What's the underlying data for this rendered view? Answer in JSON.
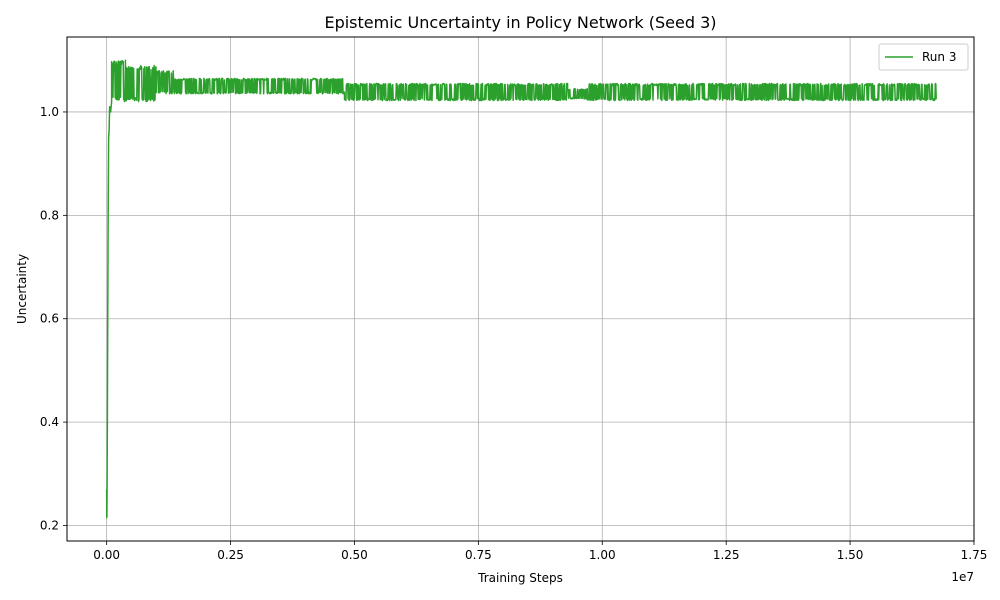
{
  "chart_data": {
    "type": "line",
    "title": "Epistemic Uncertainty in Policy Network (Seed 3)",
    "xlabel": "Training Steps",
    "ylabel": "Uncertainty",
    "x_offset_label": "1e7",
    "xlim": [
      -800000,
      17500000
    ],
    "ylim": [
      0.17,
      1.145
    ],
    "x_ticks": [
      0,
      2500000,
      5000000,
      7500000,
      10000000,
      12500000,
      15000000,
      17500000
    ],
    "x_tick_labels": [
      "0.00",
      "0.25",
      "0.50",
      "0.75",
      "1.00",
      "1.25",
      "1.50",
      "1.75"
    ],
    "y_ticks": [
      0.2,
      0.4,
      0.6,
      0.8,
      1.0
    ],
    "y_tick_labels": [
      "0.2",
      "0.4",
      "0.6",
      "0.8",
      "1.0"
    ],
    "grid": true,
    "legend_position": "top-right",
    "series": [
      {
        "name": "Run 3",
        "color": "#2ca02c",
        "x_max": 16750000,
        "initial": [
          [
            0,
            0.27
          ],
          [
            2000,
            0.215
          ],
          [
            5000,
            0.22
          ],
          [
            10000,
            0.3
          ],
          [
            20000,
            0.55
          ],
          [
            30000,
            0.8
          ],
          [
            40000,
            0.95
          ],
          [
            50000,
            0.965
          ],
          [
            60000,
            1.01
          ],
          [
            80000,
            1.0
          ],
          [
            100000,
            1.02
          ]
        ],
        "bands": [
          {
            "start": 100000,
            "end": 400000,
            "low": 1.02,
            "high": 1.1
          },
          {
            "start": 400000,
            "end": 1000000,
            "low": 1.02,
            "high": 1.09
          },
          {
            "start": 1000000,
            "end": 1350000,
            "low": 1.035,
            "high": 1.08
          },
          {
            "start": 1350000,
            "end": 4800000,
            "low": 1.035,
            "high": 1.065
          },
          {
            "start": 4800000,
            "end": 9300000,
            "low": 1.022,
            "high": 1.055
          },
          {
            "start": 9300000,
            "end": 9700000,
            "low": 1.025,
            "high": 1.045
          },
          {
            "start": 9700000,
            "end": 16750000,
            "low": 1.022,
            "high": 1.055
          }
        ]
      }
    ]
  }
}
